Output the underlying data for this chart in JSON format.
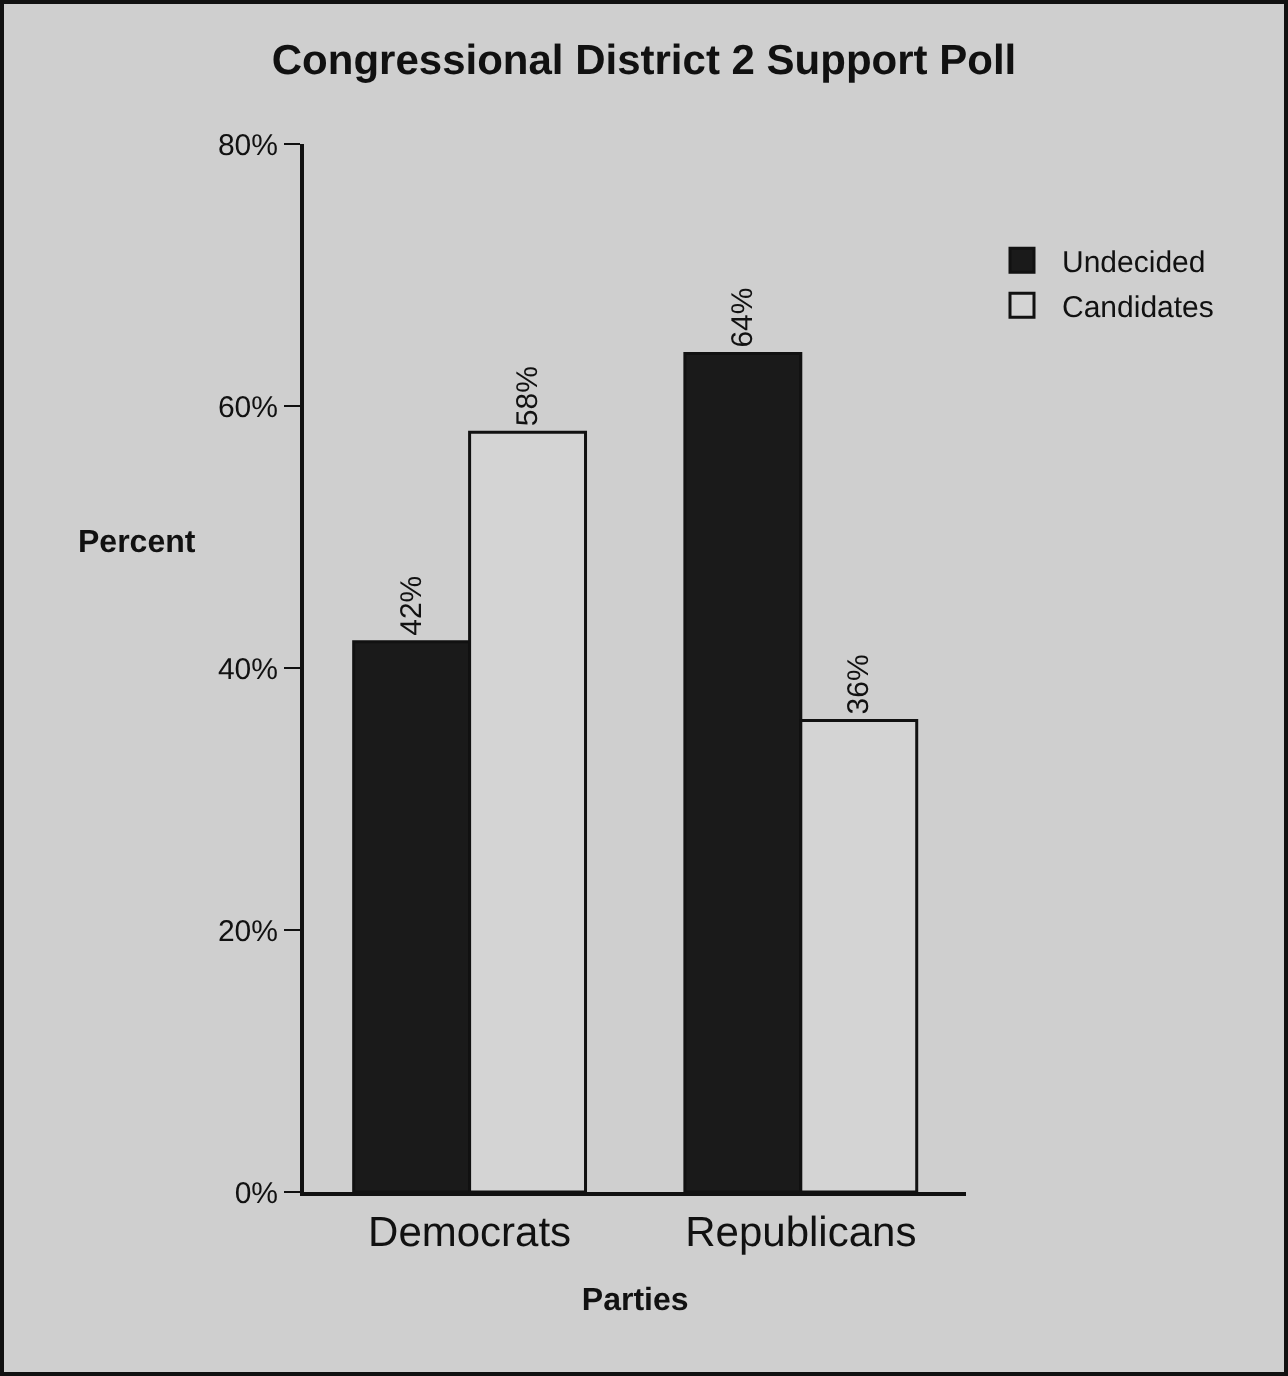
{
  "chart_data": {
    "type": "bar",
    "title": "Congressional District 2 Support Poll",
    "xlabel": "Parties",
    "ylabel": "Percent",
    "categories": [
      "Democrats",
      "Republicans"
    ],
    "series": [
      {
        "name": "Undecided",
        "color": "#1a1a1a",
        "values": [
          42,
          64
        ],
        "value_labels": [
          "42%",
          "64%"
        ]
      },
      {
        "name": "Candidates",
        "color": "#d4d4d4",
        "values": [
          58,
          36
        ],
        "value_labels": [
          "58%",
          "36%"
        ]
      }
    ],
    "ylim": [
      0,
      80
    ],
    "yticks": [
      {
        "value": 0,
        "label": "0%"
      },
      {
        "value": 20,
        "label": "20%"
      },
      {
        "value": 40,
        "label": "40%"
      },
      {
        "value": 60,
        "label": "60%"
      },
      {
        "value": 80,
        "label": "80%"
      }
    ],
    "grid": false,
    "legend": "top right"
  }
}
